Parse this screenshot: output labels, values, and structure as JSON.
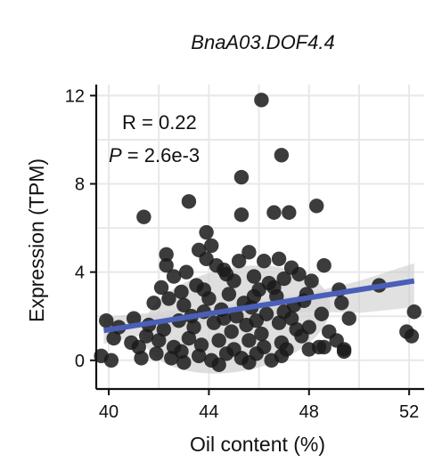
{
  "chart_data": {
    "type": "scatter",
    "title": "BnaA03.DOF4.4",
    "xlabel": "Oil content (%)",
    "ylabel": "Expression (TPM)",
    "xlim": [
      39.5,
      52.6
    ],
    "ylim": [
      -1.3,
      12.5
    ],
    "xticks": [
      40,
      44,
      48,
      52
    ],
    "yticks": [
      0,
      4,
      8,
      12
    ],
    "grid": true,
    "annotations": {
      "r_label": "R = 0.22",
      "p_prefix": "P",
      "p_value": " = 2.6e-3"
    },
    "trend_line": {
      "x": [
        39.8,
        52.2
      ],
      "y": [
        1.35,
        3.6
      ],
      "color": "#4a5fb8"
    },
    "confidence_band": {
      "x": [
        39.8,
        42,
        44,
        46,
        48,
        50,
        52.2
      ],
      "lower": [
        0.75,
        1.3,
        1.75,
        2.05,
        2.2,
        2.15,
        2.4
      ],
      "upper": [
        1.95,
        2.2,
        2.4,
        2.7,
        3.05,
        3.6,
        4.4
      ]
    },
    "ellipse": {
      "center": [
        45.1,
        1.85
      ],
      "rx_data": 3.8,
      "ry_data": 2.35,
      "rotation_deg": -11,
      "color": "#d3d3d3"
    },
    "point_color": "#1a1a1a",
    "points": [
      [
        46.1,
        11.8
      ],
      [
        46.9,
        9.3
      ],
      [
        45.3,
        8.3
      ],
      [
        43.2,
        7.2
      ],
      [
        41.4,
        6.5
      ],
      [
        45.3,
        6.6
      ],
      [
        46.6,
        6.7
      ],
      [
        47.2,
        6.7
      ],
      [
        48.3,
        7.0
      ],
      [
        43.9,
        5.8
      ],
      [
        44.1,
        5.2
      ],
      [
        43.6,
        5.0
      ],
      [
        42.3,
        4.8
      ],
      [
        45.6,
        4.9
      ],
      [
        46.2,
        4.5
      ],
      [
        46.8,
        4.6
      ],
      [
        47.3,
        4.2
      ],
      [
        48.6,
        4.3
      ],
      [
        42.6,
        3.8
      ],
      [
        43.1,
        4.0
      ],
      [
        44.3,
        4.3
      ],
      [
        44.6,
        4.1
      ],
      [
        45.0,
        3.6
      ],
      [
        45.8,
        3.8
      ],
      [
        46.4,
        3.5
      ],
      [
        47.6,
        3.9
      ],
      [
        48.1,
        3.6
      ],
      [
        42.1,
        3.3
      ],
      [
        42.9,
        3.1
      ],
      [
        43.5,
        3.4
      ],
      [
        44.0,
        2.8
      ],
      [
        44.8,
        3.0
      ],
      [
        45.4,
        2.6
      ],
      [
        46.0,
        3.2
      ],
      [
        46.7,
        2.9
      ],
      [
        47.4,
        2.5
      ],
      [
        47.9,
        3.0
      ],
      [
        49.2,
        3.2
      ],
      [
        41.8,
        2.6
      ],
      [
        42.4,
        2.8
      ],
      [
        43.0,
        2.5
      ],
      [
        43.8,
        2.2
      ],
      [
        44.5,
        2.3
      ],
      [
        45.1,
        2.0
      ],
      [
        45.7,
        2.4
      ],
      [
        46.3,
        2.1
      ],
      [
        47.0,
        2.2
      ],
      [
        48.5,
        2.1
      ],
      [
        49.3,
        2.6
      ],
      [
        39.9,
        1.8
      ],
      [
        40.4,
        1.5
      ],
      [
        41.0,
        1.9
      ],
      [
        41.6,
        1.6
      ],
      [
        42.2,
        1.4
      ],
      [
        42.8,
        1.8
      ],
      [
        43.4,
        1.5
      ],
      [
        44.2,
        1.7
      ],
      [
        44.9,
        1.3
      ],
      [
        45.5,
        1.6
      ],
      [
        46.1,
        1.2
      ],
      [
        46.8,
        1.7
      ],
      [
        47.5,
        1.4
      ],
      [
        48.0,
        1.5
      ],
      [
        48.8,
        1.3
      ],
      [
        49.6,
        1.9
      ],
      [
        40.2,
        1.0
      ],
      [
        40.9,
        0.8
      ],
      [
        41.5,
        1.1
      ],
      [
        42.0,
        0.9
      ],
      [
        42.6,
        0.6
      ],
      [
        43.2,
        1.0
      ],
      [
        43.7,
        0.7
      ],
      [
        44.4,
        0.9
      ],
      [
        45.0,
        0.5
      ],
      [
        45.6,
        0.9
      ],
      [
        46.2,
        0.6
      ],
      [
        46.9,
        0.8
      ],
      [
        47.7,
        1.1
      ],
      [
        48.4,
        0.6
      ],
      [
        49.1,
        0.9
      ],
      [
        39.7,
        0.2
      ],
      [
        40.1,
        0.0
      ],
      [
        41.3,
        0.1
      ],
      [
        41.9,
        0.3
      ],
      [
        42.5,
        0.1
      ],
      [
        43.0,
        -0.1
      ],
      [
        43.6,
        0.2
      ],
      [
        44.1,
        0.0
      ],
      [
        44.7,
        0.3
      ],
      [
        45.3,
        0.1
      ],
      [
        45.9,
        0.3
      ],
      [
        46.5,
        0.0
      ],
      [
        47.1,
        0.5
      ],
      [
        48.0,
        0.5
      ],
      [
        48.6,
        0.6
      ],
      [
        49.4,
        0.4
      ],
      [
        50.8,
        3.4
      ],
      [
        52.2,
        2.2
      ],
      [
        51.9,
        1.3
      ],
      [
        52.1,
        1.1
      ],
      [
        49.4,
        0.5
      ],
      [
        42.3,
        4.3
      ],
      [
        43.9,
        4.6
      ],
      [
        45.2,
        4.5
      ],
      [
        44.7,
        3.9
      ],
      [
        46.6,
        3.3
      ],
      [
        47.8,
        2.7
      ],
      [
        43.3,
        2.0
      ],
      [
        44.6,
        1.9
      ],
      [
        45.9,
        1.8
      ],
      [
        47.3,
        1.9
      ],
      [
        41.2,
        0.6
      ],
      [
        42.9,
        0.4
      ],
      [
        44.4,
        -0.2
      ],
      [
        45.6,
        -0.1
      ],
      [
        46.9,
        0.2
      ],
      [
        43.8,
        3.2
      ],
      [
        45.8,
        2.9
      ],
      [
        47.0,
        3.7
      ]
    ]
  }
}
